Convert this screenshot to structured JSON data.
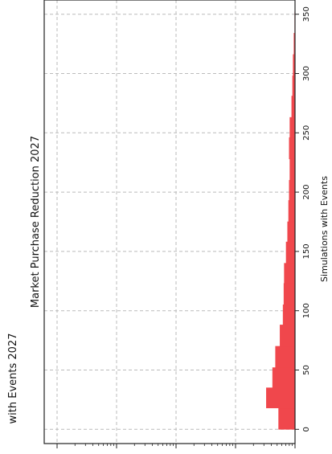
{
  "chart_data": {
    "type": "bar",
    "orientation": "rotated-90-counterclockwise",
    "title": "Market Purchase Reduction 2027",
    "left_title": "with Events 2027",
    "xlabel": "Simulations with Events",
    "xlim": [
      -12,
      362
    ],
    "x_ticks": [
      0,
      50,
      100,
      150,
      200,
      250,
      300,
      350
    ],
    "x_tick_labels": [
      "0",
      "50",
      "100",
      "150",
      "200",
      "250",
      "300",
      "350"
    ],
    "y_scale": "log",
    "grid": true,
    "color": "#f0474c",
    "bars": [
      {
        "x0": 0,
        "x1": 18,
        "value": 0.53
      },
      {
        "x0": 18,
        "x1": 35,
        "value": 0.33
      },
      {
        "x0": 35,
        "x1": 52,
        "value": 0.42
      },
      {
        "x0": 52,
        "x1": 70,
        "value": 0.47
      },
      {
        "x0": 70,
        "x1": 88,
        "value": 0.56
      },
      {
        "x0": 88,
        "x1": 105,
        "value": 0.63
      },
      {
        "x0": 105,
        "x1": 123,
        "value": 0.65
      },
      {
        "x0": 123,
        "x1": 140,
        "value": 0.66
      },
      {
        "x0": 140,
        "x1": 158,
        "value": 0.71
      },
      {
        "x0": 158,
        "x1": 175,
        "value": 0.75
      },
      {
        "x0": 175,
        "x1": 193,
        "value": 0.78
      },
      {
        "x0": 193,
        "x1": 210,
        "value": 0.8
      },
      {
        "x0": 210,
        "x1": 228,
        "value": 0.82
      },
      {
        "x0": 228,
        "x1": 246,
        "value": 0.8
      },
      {
        "x0": 246,
        "x1": 263,
        "value": 0.82
      },
      {
        "x0": 263,
        "x1": 281,
        "value": 0.88
      },
      {
        "x0": 281,
        "x1": 298,
        "value": 0.91
      },
      {
        "x0": 298,
        "x1": 316,
        "value": 0.93
      },
      {
        "x0": 316,
        "x1": 334,
        "value": 0.96
      },
      {
        "x0": 334,
        "x1": 352,
        "value": 0.99
      }
    ]
  }
}
